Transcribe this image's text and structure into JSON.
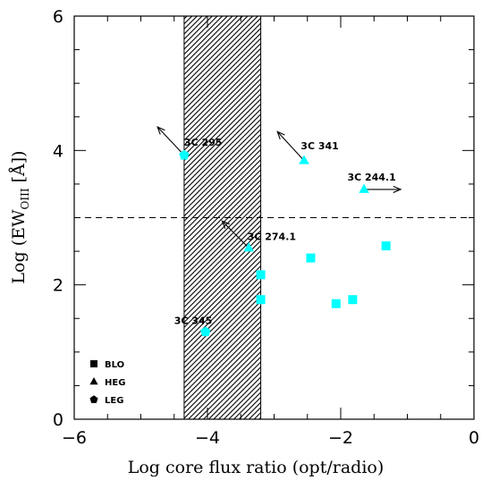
{
  "chart_data": {
    "type": "scatter",
    "xlabel": "Log core flux ratio (opt/radio)",
    "ylabel": "Log (EW",
    "ylabel_sub": "OIII",
    "ylabel_tail": " [Å])",
    "xlim": [
      -6,
      0
    ],
    "ylim": [
      0,
      6
    ],
    "x_ticks": [
      -6,
      -4,
      -2,
      0
    ],
    "x_tick_labels": [
      "−6",
      "−4",
      "−2",
      "0"
    ],
    "y_ticks": [
      0,
      2,
      4,
      6
    ],
    "y_tick_labels": [
      "0",
      "2",
      "4",
      "6"
    ],
    "hatched_band": [
      -4.35,
      -3.2
    ],
    "reference_line_y": 3.0,
    "marker_color": "#00ffff",
    "legend_position": "bottom-left",
    "legend": [
      {
        "label": "BLO",
        "marker": "square"
      },
      {
        "label": "HEG",
        "marker": "triangle"
      },
      {
        "label": "LEG",
        "marker": "pentagon"
      }
    ],
    "points": [
      {
        "x": -4.35,
        "y": 3.93,
        "marker": "pentagon"
      },
      {
        "x": -2.55,
        "y": 3.85,
        "marker": "triangle"
      },
      {
        "x": -1.65,
        "y": 3.42,
        "marker": "triangle"
      },
      {
        "x": -3.38,
        "y": 2.55,
        "marker": "triangle"
      },
      {
        "x": -4.03,
        "y": 1.3,
        "marker": "pentagon"
      },
      {
        "x": -1.32,
        "y": 2.58,
        "marker": "square"
      },
      {
        "x": -2.45,
        "y": 2.4,
        "marker": "square"
      },
      {
        "x": -1.82,
        "y": 1.78,
        "marker": "square"
      },
      {
        "x": -2.07,
        "y": 1.72,
        "marker": "square"
      },
      {
        "x": -3.2,
        "y": 2.15,
        "marker": "square"
      },
      {
        "x": -3.2,
        "y": 1.78,
        "marker": "square"
      }
    ],
    "arrows": [
      {
        "x1": -4.35,
        "y1": 3.93,
        "x2": -4.75,
        "y2": 4.35
      },
      {
        "x1": -2.55,
        "y1": 3.85,
        "x2": -2.95,
        "y2": 4.28
      },
      {
        "x1": -3.38,
        "y1": 2.55,
        "x2": -3.78,
        "y2": 2.95
      },
      {
        "x1": -1.65,
        "y1": 3.42,
        "x2": -1.1,
        "y2": 3.42
      }
    ],
    "annotations": [
      {
        "text": "3C 295",
        "x": -4.35,
        "y": 4.07
      },
      {
        "text": "3C 341",
        "x": -2.6,
        "y": 4.02
      },
      {
        "text": "3C 244.1",
        "x": -1.9,
        "y": 3.55
      },
      {
        "text": "3C 274.1",
        "x": -3.4,
        "y": 2.67
      },
      {
        "text": "3C 345",
        "x": -4.5,
        "y": 1.42
      }
    ]
  }
}
